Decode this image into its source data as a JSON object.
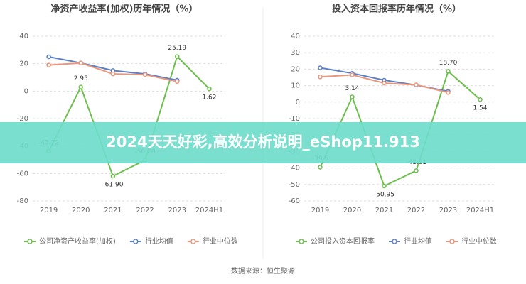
{
  "chart_data": [
    {
      "type": "line",
      "title": "净资产收益率(加权)历年情况（%）",
      "categories": [
        "2019",
        "2020",
        "2021",
        "2022",
        "2023",
        "2024H1"
      ],
      "ylim": [
        -80,
        40
      ],
      "yticks": [
        40,
        20,
        0,
        -20,
        -40,
        -60,
        -80
      ],
      "grid": true,
      "series": [
        {
          "name": "公司净资产收益率(加权)",
          "color": "#6cbf4c",
          "values": [
            -43.72,
            2.95,
            -61.9,
            -50.2,
            25.19,
            1.62
          ],
          "value_labels": [
            "-43.72",
            "2.95",
            "-61.90",
            "-50.20",
            "25.19",
            "1.62"
          ]
        },
        {
          "name": "行业均值",
          "color": "#5b80c8",
          "values": [
            25,
            20.5,
            15,
            12.5,
            8,
            null
          ]
        },
        {
          "name": "行业中位数",
          "color": "#e9967a",
          "values": [
            19,
            20.5,
            12.5,
            12,
            7,
            null
          ]
        }
      ]
    },
    {
      "type": "line",
      "title": "投入资本回报率历年情况（%）",
      "categories": [
        "2019",
        "2020",
        "2021",
        "2022",
        "2023",
        "2024H1"
      ],
      "ylim": [
        -60,
        40
      ],
      "yticks": [
        40,
        30,
        20,
        10,
        0,
        -10,
        -20,
        -30,
        -40,
        -50,
        -60
      ],
      "grid": true,
      "series": [
        {
          "name": "公司投入资本回报率",
          "color": "#6cbf4c",
          "values": [
            -39.5,
            3.14,
            -50.95,
            -41.61,
            18.7,
            1.54
          ],
          "value_labels": [
            "-39.5",
            "3.14",
            "-50.95",
            "-41.61",
            "18.70",
            "1.54"
          ]
        },
        {
          "name": "行业均值",
          "color": "#5b80c8",
          "values": [
            20.8,
            17.5,
            13.3,
            10.3,
            6.5,
            null
          ]
        },
        {
          "name": "行业中位数",
          "color": "#e9967a",
          "values": [
            15.3,
            16.5,
            11.5,
            10.5,
            5.8,
            null
          ]
        }
      ]
    }
  ],
  "banner": "2024天天好彩,高效分析说明_eShop11.913",
  "source": "数据来源：恒生聚源"
}
